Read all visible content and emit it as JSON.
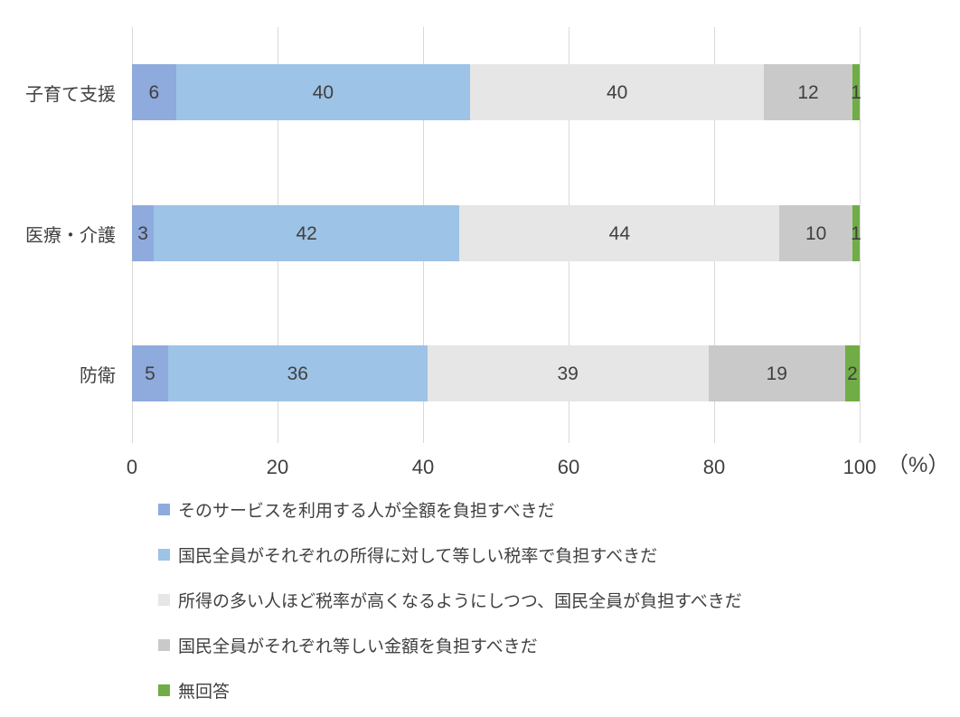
{
  "chart_data": {
    "type": "bar",
    "orientation": "horizontal",
    "stacked": true,
    "normalized_to_100_percent": true,
    "categories": [
      "子育て支援",
      "医療・介護",
      "防衛"
    ],
    "series": [
      {
        "name": "そのサービスを利用する人が全額を負担すべきだ",
        "color": "#8faadc",
        "values": [
          6,
          3,
          5
        ]
      },
      {
        "name": "国民全員がそれぞれの所得に対して等しい税率で負担すべきだ",
        "color": "#9dc3e6",
        "values": [
          40,
          42,
          36
        ]
      },
      {
        "name": "所得の多い人ほど税率が高くなるようにしつつ、国民全員が負担すべきだ",
        "color": "#e7e6e6",
        "values": [
          40,
          44,
          39
        ]
      },
      {
        "name": "国民全員がそれぞれ等しい金額を負担すべきだ",
        "color": "#c9c9c9",
        "values": [
          12,
          10,
          19
        ]
      },
      {
        "name": "無回答",
        "color": "#70ad47",
        "values": [
          1,
          1,
          2
        ]
      }
    ],
    "x_ticks": [
      0,
      20,
      40,
      60,
      80,
      100
    ],
    "xlim": [
      0,
      100
    ],
    "unit_label": "（%）",
    "xlabel": "",
    "ylabel": "",
    "title": "",
    "grid": "vertical",
    "legend_position": "bottom-left",
    "colors": {
      "gridline": "#d9d9d9",
      "text": "#404040",
      "background": "#ffffff"
    }
  }
}
